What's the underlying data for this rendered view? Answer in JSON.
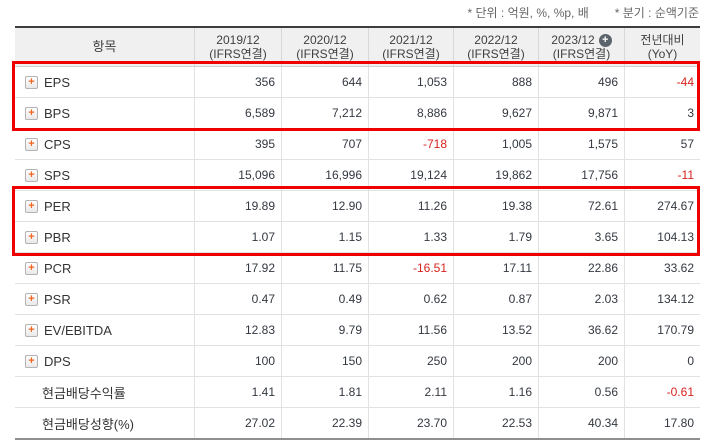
{
  "notes": {
    "unit": "* 단위 : 억원, %, %p, 배",
    "basis": "* 분기 : 순액기준"
  },
  "icons": {
    "expand_plus": "+",
    "add_column": "+"
  },
  "colors": {
    "highlight_red": "#ee0000",
    "negative_value_red": "#d6231f",
    "expand_icon_orange": "#f26522",
    "add_column_circle_gray": "#5b646c",
    "header_bg": "#f0f0f0"
  },
  "table": {
    "item_header": "항목",
    "columns": [
      {
        "line1": "2019/12",
        "line2": "(IFRS연결)"
      },
      {
        "line1": "2020/12",
        "line2": "(IFRS연결)"
      },
      {
        "line1": "2021/12",
        "line2": "(IFRS연결)"
      },
      {
        "line1": "2022/12",
        "line2": "(IFRS연결)"
      },
      {
        "line1": "2023/12",
        "line2": "(IFRS연결)",
        "has_add_icon": true
      },
      {
        "line1": "전년대비",
        "line2": "(YoY)"
      }
    ],
    "rows": [
      {
        "label": "EPS",
        "expandable": true,
        "values": [
          "356",
          "644",
          "1,053",
          "888",
          "496",
          "-44"
        ]
      },
      {
        "label": "BPS",
        "expandable": true,
        "values": [
          "6,589",
          "7,212",
          "8,886",
          "9,627",
          "9,871",
          "3"
        ]
      },
      {
        "label": "CPS",
        "expandable": true,
        "values": [
          "395",
          "707",
          "-718",
          "1,005",
          "1,575",
          "57"
        ]
      },
      {
        "label": "SPS",
        "expandable": true,
        "values": [
          "15,096",
          "16,996",
          "19,124",
          "19,862",
          "17,756",
          "-11"
        ]
      },
      {
        "label": "PER",
        "expandable": true,
        "values": [
          "19.89",
          "12.90",
          "11.26",
          "19.38",
          "72.61",
          "274.67"
        ]
      },
      {
        "label": "PBR",
        "expandable": true,
        "values": [
          "1.07",
          "1.15",
          "1.33",
          "1.79",
          "3.65",
          "104.13"
        ]
      },
      {
        "label": "PCR",
        "expandable": true,
        "values": [
          "17.92",
          "11.75",
          "-16.51",
          "17.11",
          "22.86",
          "33.62"
        ]
      },
      {
        "label": "PSR",
        "expandable": true,
        "values": [
          "0.47",
          "0.49",
          "0.62",
          "0.87",
          "2.03",
          "134.12"
        ]
      },
      {
        "label": "EV/EBITDA",
        "expandable": true,
        "values": [
          "12.83",
          "9.79",
          "11.56",
          "13.52",
          "36.62",
          "170.79"
        ]
      },
      {
        "label": "DPS",
        "expandable": true,
        "values": [
          "100",
          "150",
          "250",
          "200",
          "200",
          "0"
        ]
      },
      {
        "label": "현금배당수익률",
        "expandable": false,
        "values": [
          "1.41",
          "1.81",
          "2.11",
          "1.16",
          "0.56",
          "-0.61"
        ]
      },
      {
        "label": "현금배당성향(%)",
        "expandable": false,
        "values": [
          "27.02",
          "22.39",
          "23.70",
          "22.53",
          "40.34",
          "17.80"
        ]
      }
    ],
    "highlighted_row_groups": [
      [
        "EPS",
        "BPS"
      ],
      [
        "PER",
        "PBR"
      ]
    ]
  }
}
